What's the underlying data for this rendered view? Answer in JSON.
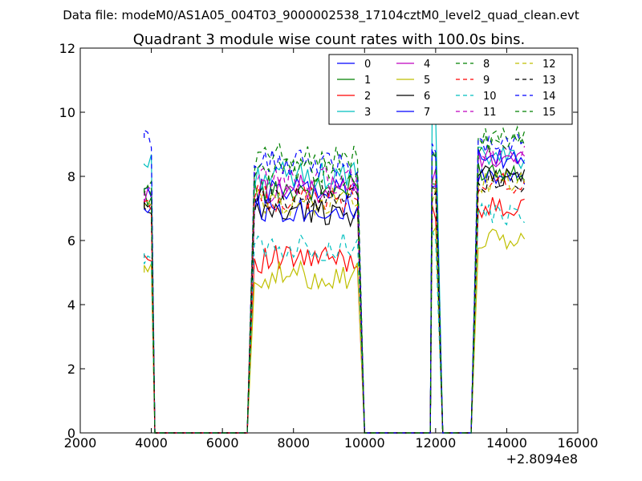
{
  "figure": {
    "suptitle": "Data file: modeM0/AS1A05_004T03_9000002538_17104cztM0_level2_quad_clean.evt"
  },
  "chart_data": {
    "type": "line",
    "title": "Quadrant 3 module wise count rates with 100.0s bins.",
    "xlabel": "",
    "ylabel": "",
    "x_offset_label": "+2.8094e8",
    "xlim": [
      2000,
      16000
    ],
    "ylim": [
      0,
      12
    ],
    "x_ticks": [
      2000,
      4000,
      6000,
      8000,
      10000,
      12000,
      14000,
      16000
    ],
    "y_ticks": [
      0,
      2,
      4,
      6,
      8,
      10,
      12
    ],
    "x_tick_labels": [
      "2000",
      "4000",
      "6000",
      "8000",
      "10000",
      "12000",
      "14000",
      "16000"
    ],
    "y_tick_labels": [
      "0",
      "2",
      "4",
      "6",
      "8",
      "10",
      "12"
    ],
    "grid": false,
    "legend_placement": "top-right",
    "legend_columns": 4,
    "segments": [
      {
        "x_start": 3800,
        "x_end": 4000,
        "ramp_x": 4100
      },
      {
        "x_start": 6900,
        "x_end": 9800,
        "ramp_x": 10000,
        "rise_x": 6700
      },
      {
        "x_start": 11900,
        "x_end": 12000,
        "ramp_x": 12200,
        "rise_x": 11850
      },
      {
        "x_start": 13200,
        "x_end": 14500,
        "rise_x": 13000
      }
    ],
    "series": [
      {
        "name": "0",
        "color": "#0000ff",
        "dash": "solid",
        "levels": [
          7.2,
          7.5,
          7.6,
          8.0
        ]
      },
      {
        "name": "1",
        "color": "#008000",
        "dash": "solid",
        "levels": [
          7.4,
          7.6,
          7.8,
          8.2
        ]
      },
      {
        "name": "2",
        "color": "#ff0000",
        "dash": "solid",
        "levels": [
          5.5,
          5.4,
          7.0,
          7.0
        ]
      },
      {
        "name": "3",
        "color": "#00bfbf",
        "dash": "solid",
        "levels": [
          8.4,
          8.0,
          9.6,
          8.6
        ]
      },
      {
        "name": "4",
        "color": "#bf00bf",
        "dash": "solid",
        "levels": [
          7.3,
          7.6,
          8.0,
          8.6
        ]
      },
      {
        "name": "5",
        "color": "#bfbf00",
        "dash": "solid",
        "levels": [
          5.0,
          4.9,
          6.4,
          6.0
        ]
      },
      {
        "name": "6",
        "color": "#000000",
        "dash": "solid",
        "levels": [
          7.0,
          6.9,
          7.5,
          8.0
        ]
      },
      {
        "name": "7",
        "color": "#0000ff",
        "dash": "solid",
        "levels": [
          7.6,
          7.0,
          8.5,
          8.5
        ]
      },
      {
        "name": "8",
        "color": "#008000",
        "dash": "dashed",
        "levels": [
          7.6,
          8.6,
          8.4,
          9.2
        ]
      },
      {
        "name": "9",
        "color": "#ff0000",
        "dash": "dashed",
        "levels": [
          7.2,
          7.3,
          7.6,
          7.8
        ]
      },
      {
        "name": "10",
        "color": "#00bfbf",
        "dash": "dashed",
        "levels": [
          5.6,
          5.8,
          6.3,
          6.8
        ]
      },
      {
        "name": "11",
        "color": "#bf00bf",
        "dash": "dashed",
        "levels": [
          7.4,
          7.9,
          7.8,
          8.6
        ]
      },
      {
        "name": "12",
        "color": "#bfbf00",
        "dash": "dashed",
        "levels": [
          7.0,
          7.2,
          7.4,
          7.8
        ]
      },
      {
        "name": "13",
        "color": "#000000",
        "dash": "dashed",
        "levels": [
          7.1,
          7.3,
          7.6,
          7.7
        ]
      },
      {
        "name": "14",
        "color": "#0000ff",
        "dash": "dashed",
        "levels": [
          9.2,
          8.4,
          9.0,
          9.0
        ]
      },
      {
        "name": "15",
        "color": "#008000",
        "dash": "dashed",
        "levels": [
          7.6,
          8.1,
          8.6,
          9.0
        ]
      }
    ]
  }
}
